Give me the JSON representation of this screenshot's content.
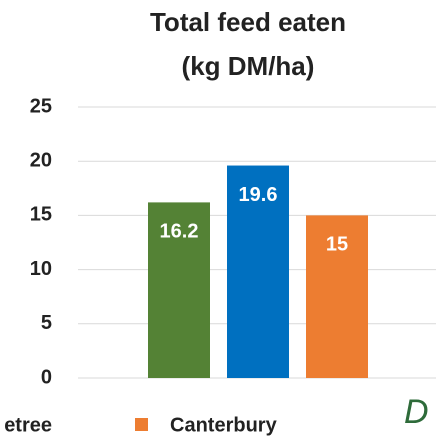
{
  "chart_data": {
    "type": "bar",
    "title": "Total feed eaten",
    "subtitle": "(kg DM/ha)",
    "series": [
      {
        "name": "etree",
        "color": "#548235",
        "values": [
          16.2
        ]
      },
      {
        "color": "#0070c0",
        "values": [
          19.6
        ]
      },
      {
        "name": "Canterbury",
        "color": "#ed7d31",
        "values": [
          15
        ]
      }
    ],
    "ylim": [
      0,
      25
    ],
    "yticks": [
      0,
      5,
      10,
      15,
      20,
      25
    ],
    "grid": true,
    "annotation": "D"
  }
}
